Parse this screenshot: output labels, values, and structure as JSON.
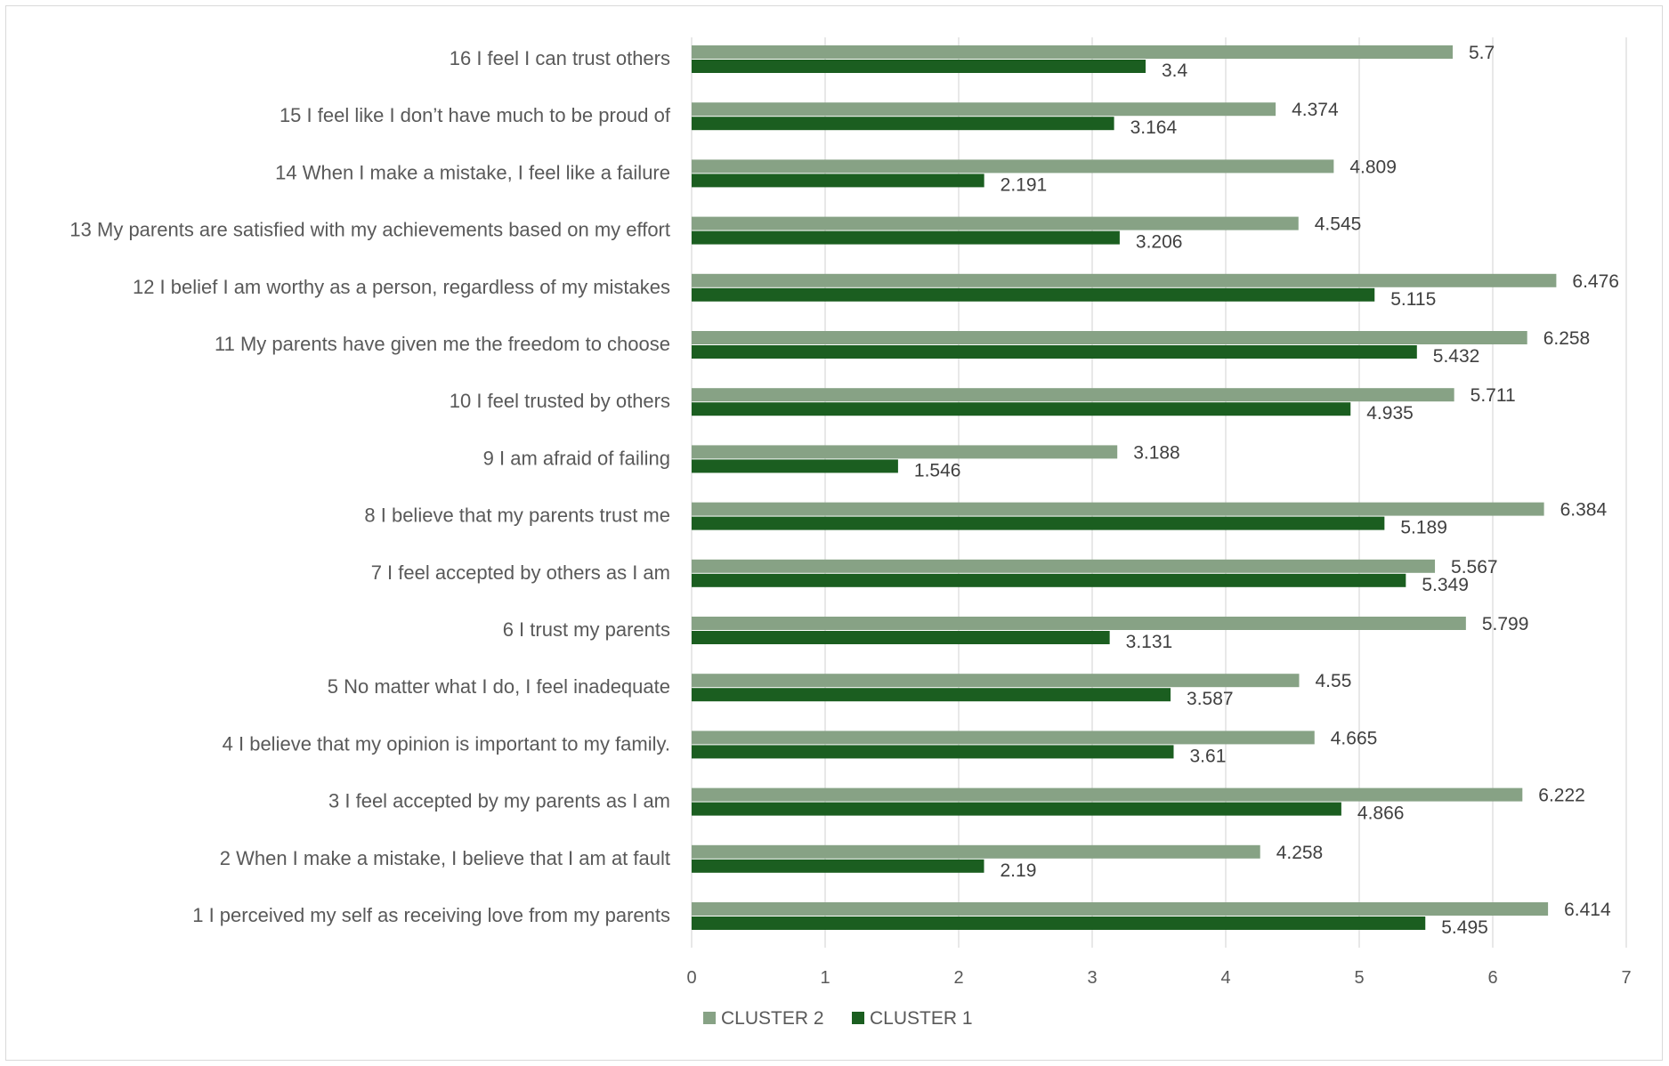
{
  "chart_data": {
    "type": "bar",
    "orientation": "horizontal",
    "title": "",
    "xlabel": "",
    "ylabel": "",
    "xlim": [
      0,
      7
    ],
    "x_ticks": [
      "0",
      "1",
      "2",
      "3",
      "4",
      "5",
      "6",
      "7"
    ],
    "grid": true,
    "legend_position": "bottom",
    "categories": [
      "1 I perceived my self as receiving love from my parents",
      "2 When I make a mistake, I believe that I am at fault",
      "3 I feel accepted by my parents as I am",
      "4 I believe that my opinion is important to my family.",
      "5 No matter what I do, I feel inadequate",
      "6 I trust my parents",
      "7 I feel accepted by others as I am",
      "8 I believe that my parents trust me",
      "9 I am afraid of failing",
      "10 I feel trusted by others",
      "11 My parents have given me the freedom to choose",
      "12 I belief I am worthy as a person, regardless of my mistakes",
      "13 My parents are satisfied with my achievements based on my effort",
      "14 When I make a mistake, I feel like a failure",
      "15 I feel like I don’t have much to be proud of",
      "16 I feel I can trust others"
    ],
    "series": [
      {
        "name": "CLUSTER 2",
        "color": "#87a285",
        "values": [
          6.414,
          4.258,
          6.222,
          4.665,
          4.55,
          5.799,
          5.567,
          6.384,
          3.188,
          5.711,
          6.258,
          6.476,
          4.545,
          4.809,
          4.374,
          5.7
        ],
        "labels": [
          "6.414",
          "4.258",
          "6.222",
          "4.665",
          "4.55",
          "5.799",
          "5.567",
          "6.384",
          "3.188",
          "5.711",
          "6.258",
          "6.476",
          "4.545",
          "4.809",
          "4.374",
          "5.7"
        ]
      },
      {
        "name": "CLUSTER 1",
        "color": "#1b5e20",
        "values": [
          5.495,
          2.19,
          4.866,
          3.61,
          3.587,
          3.131,
          5.349,
          5.189,
          1.546,
          4.935,
          5.432,
          5.115,
          3.206,
          2.191,
          3.164,
          3.4
        ],
        "labels": [
          "5.495",
          "2.19",
          "4.866",
          "3.61",
          "3.587",
          "3.131",
          "5.349",
          "5.189",
          "1.546",
          "4.935",
          "5.432",
          "5.115",
          "3.206",
          "2.191",
          "3.164",
          "3.4"
        ]
      }
    ]
  }
}
